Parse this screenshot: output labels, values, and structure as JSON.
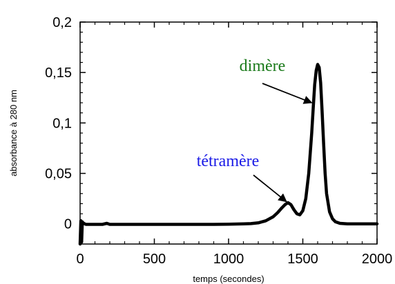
{
  "chart_data": {
    "type": "line",
    "xlabel": "temps (secondes)",
    "ylabel": "absorbance à 280 nm",
    "xlim": [
      0,
      2000
    ],
    "ylim": [
      -0.02,
      0.2
    ],
    "xticks": [
      0,
      500,
      1000,
      1500,
      2000
    ],
    "xtick_labels": [
      "0",
      "500",
      "1000",
      "1500",
      "2000"
    ],
    "yticks": [
      0,
      0.05,
      0.1,
      0.15,
      0.2
    ],
    "ytick_labels": [
      "0",
      "0,05",
      "0,1",
      "0,15",
      "0,2"
    ],
    "grid": false,
    "series": [
      {
        "x": [
          0,
          5,
          10,
          15,
          20,
          30,
          40,
          60,
          100,
          150,
          180,
          200,
          250,
          300,
          400,
          500,
          600,
          700,
          800,
          900,
          1000,
          1100,
          1150,
          1200,
          1250,
          1300,
          1330,
          1360,
          1380,
          1400,
          1420,
          1440,
          1460,
          1480,
          1500,
          1520,
          1540,
          1560,
          1570,
          1580,
          1590,
          1600,
          1610,
          1620,
          1630,
          1640,
          1650,
          1660,
          1680,
          1700,
          1720,
          1750,
          1800,
          1900,
          2000
        ],
        "y": [
          -0.02,
          0.003,
          -0.018,
          0.002,
          0.001,
          0.0,
          -0.0005,
          -0.0005,
          -0.0005,
          -0.0005,
          0.0005,
          -0.0005,
          -0.0005,
          -0.0005,
          -0.0005,
          -0.0005,
          -0.0005,
          -0.0005,
          -0.0005,
          -0.0005,
          -0.0003,
          0.0,
          0.0002,
          0.001,
          0.003,
          0.007,
          0.011,
          0.016,
          0.019,
          0.021,
          0.019,
          0.014,
          0.01,
          0.009,
          0.013,
          0.025,
          0.05,
          0.09,
          0.115,
          0.138,
          0.152,
          0.158,
          0.155,
          0.14,
          0.112,
          0.08,
          0.05,
          0.03,
          0.012,
          0.005,
          0.002,
          0.0005,
          0.0,
          0.0,
          0.0
        ]
      }
    ],
    "annotations": [
      {
        "text": "dimère",
        "color": "#1a7a1a",
        "arrow_to": [
          1560,
          0.12
        ]
      },
      {
        "text": "tétramère",
        "color": "#1a1ae6",
        "arrow_to": [
          1390,
          0.022
        ]
      }
    ]
  }
}
